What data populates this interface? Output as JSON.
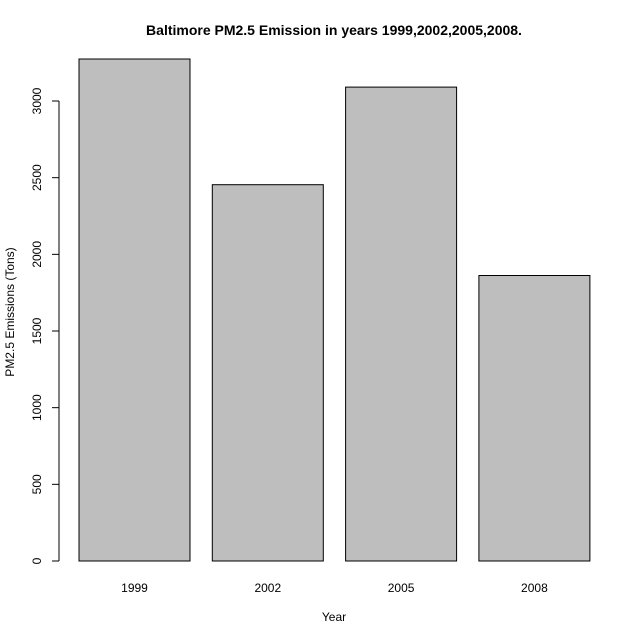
{
  "chart_data": {
    "type": "bar",
    "title": "Baltimore PM2.5 Emission in years 1999,2002,2005,2008.",
    "xlabel": "Year",
    "ylabel": "PM2.5 Emissions (Tons)",
    "categories": [
      "1999",
      "2002",
      "2005",
      "2008"
    ],
    "values": [
      3274,
      2454,
      3091,
      1862
    ],
    "ylim": [
      0,
      3274
    ],
    "yticks": [
      0,
      500,
      1000,
      1500,
      2000,
      2500,
      3000
    ],
    "bar_color": "#bebebe",
    "grid": false
  }
}
